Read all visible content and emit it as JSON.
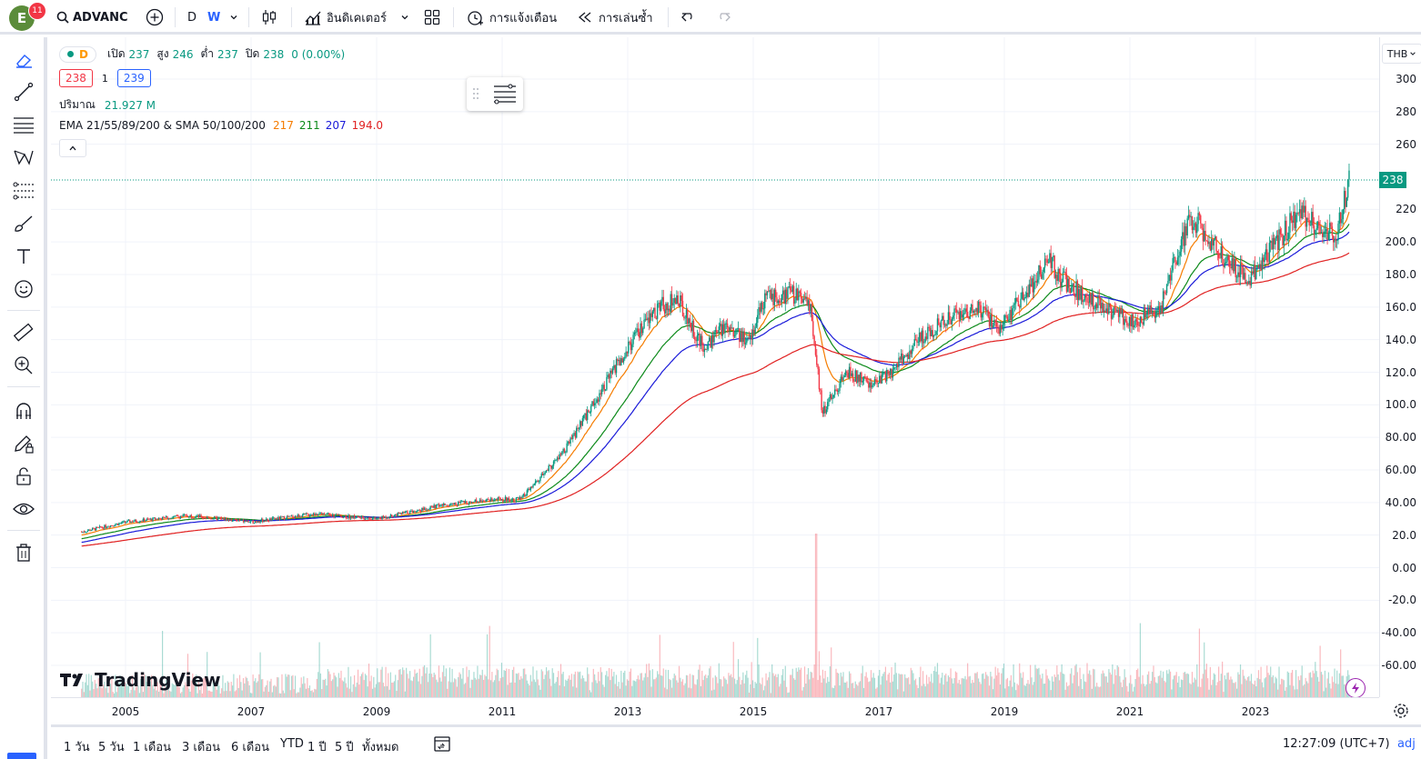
{
  "topbar": {
    "avatar_letter": "E",
    "notification_count": "11",
    "symbol": "ADVANC",
    "interval_d": "D",
    "interval_w": "W",
    "indicators_label": "อินดิเคเตอร์",
    "alerts_label": "การแจ้งเตือน",
    "replay_label": "การเล่นซ้ำ"
  },
  "legend": {
    "open_label": "เปิด",
    "open_value": "237",
    "high_label": "สูง",
    "high_value": "246",
    "low_label": "ต่ำ",
    "low_value": "237",
    "close_label": "ปิด",
    "close_value": "238",
    "change": "0 (0.00%)",
    "interval_badge": "D",
    "bid": "238",
    "spread": "1",
    "ask": "239",
    "volume_label": "ปริมาณ",
    "volume_value": "21.927 M",
    "ema_label": "EMA 21/55/89/200 & SMA 50/100/200",
    "ema_values": [
      "217",
      "211",
      "207",
      "194.0"
    ]
  },
  "currency": "THB",
  "last_price": "238",
  "chart_data": {
    "type": "candlestick",
    "symbol": "ADVANC",
    "interval": "W",
    "x_years": [
      "2005",
      "2007",
      "2009",
      "2011",
      "2013",
      "2015",
      "2017",
      "2019",
      "2021",
      "2023"
    ],
    "y_ticks": [
      "300",
      "280",
      "260",
      "220",
      "200.0",
      "180.0",
      "160.0",
      "140.0",
      "120.0",
      "100.0",
      "80.00",
      "60.00",
      "40.00",
      "20.0",
      "0.00",
      "-20.0",
      "-40.00",
      "-60.00"
    ],
    "ylim": [
      -60,
      300
    ],
    "price_path": [
      [
        2004.3,
        22
      ],
      [
        2005.0,
        28
      ],
      [
        2006.0,
        32
      ],
      [
        2007.0,
        28
      ],
      [
        2008.0,
        33
      ],
      [
        2009.0,
        30
      ],
      [
        2010.0,
        38
      ],
      [
        2010.8,
        42
      ],
      [
        2011.3,
        42
      ],
      [
        2012.0,
        72
      ],
      [
        2012.6,
        110
      ],
      [
        2013.0,
        135
      ],
      [
        2013.5,
        160
      ],
      [
        2013.8,
        165
      ],
      [
        2014.2,
        135
      ],
      [
        2014.6,
        150
      ],
      [
        2014.9,
        138
      ],
      [
        2015.2,
        165
      ],
      [
        2015.6,
        168
      ],
      [
        2015.9,
        162
      ],
      [
        2016.1,
        95
      ],
      [
        2016.5,
        120
      ],
      [
        2016.9,
        112
      ],
      [
        2017.2,
        120
      ],
      [
        2017.6,
        138
      ],
      [
        2017.9,
        148
      ],
      [
        2018.3,
        158
      ],
      [
        2018.6,
        158
      ],
      [
        2018.9,
        148
      ],
      [
        2019.3,
        165
      ],
      [
        2019.7,
        190
      ],
      [
        2019.9,
        178
      ],
      [
        2020.3,
        165
      ],
      [
        2020.7,
        158
      ],
      [
        2021.0,
        150
      ],
      [
        2021.5,
        160
      ],
      [
        2021.8,
        200
      ],
      [
        2022.0,
        215
      ],
      [
        2022.3,
        200
      ],
      [
        2022.6,
        185
      ],
      [
        2022.9,
        178
      ],
      [
        2023.3,
        198
      ],
      [
        2023.7,
        218
      ],
      [
        2024.0,
        210
      ],
      [
        2024.3,
        205
      ],
      [
        2024.5,
        238
      ]
    ],
    "series": [
      {
        "name": "EMA 21",
        "color": "#f57c00",
        "last": 217
      },
      {
        "name": "EMA 55",
        "color": "#0c8a1a",
        "last": 211
      },
      {
        "name": "EMA 89",
        "color": "#1a1ad9",
        "last": 207
      },
      {
        "name": "EMA 200",
        "color": "#e02020",
        "last": 194.0
      }
    ],
    "volume_spike_year": 2016.0
  },
  "ranges": [
    "1 วัน",
    "5 วัน",
    "1 เดือน",
    "3 เดือน",
    "6 เดือน",
    "YTD",
    "1 ปี",
    "5 ปี",
    "ทั้งหมด"
  ],
  "clock": "12:27:09 (UTC+7)",
  "adj": "adj",
  "logo_text": "TradingView"
}
